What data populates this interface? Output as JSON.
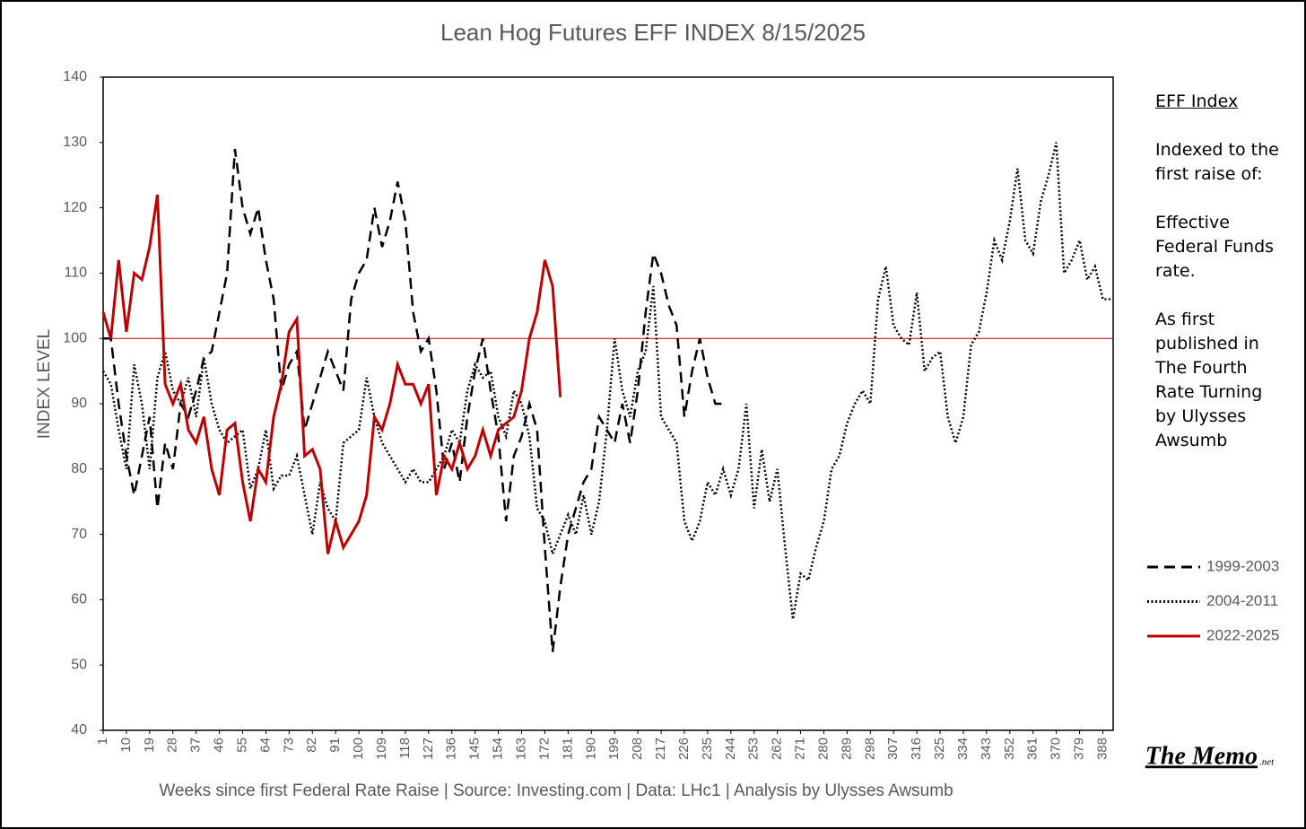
{
  "chart_data": {
    "type": "line",
    "title": "Lean Hog Futures EFF INDEX 8/15/2025",
    "x_label": "Weeks since first Federal Rate Raise | Source: Investing.com  | Data: LHc1 | Analysis by Ulysses Awsumb",
    "y_label": "INDEX LEVEL",
    "xlim": [
      1,
      392
    ],
    "ylim": [
      40,
      140
    ],
    "xticks": [
      1,
      10,
      19,
      28,
      37,
      46,
      55,
      64,
      73,
      82,
      91,
      100,
      109,
      118,
      127,
      136,
      145,
      154,
      163,
      172,
      181,
      190,
      199,
      208,
      217,
      226,
      235,
      244,
      253,
      262,
      271,
      280,
      289,
      298,
      307,
      316,
      325,
      334,
      343,
      352,
      361,
      370,
      379,
      388
    ],
    "yticks": [
      40,
      50,
      60,
      70,
      80,
      90,
      100,
      110,
      120,
      130,
      140
    ],
    "grid": false,
    "reference_line": {
      "value": 100,
      "color": "#c00000"
    },
    "legend_position": "right",
    "x": [
      1,
      4,
      7,
      10,
      13,
      16,
      19,
      22,
      25,
      28,
      31,
      34,
      37,
      40,
      43,
      46,
      49,
      52,
      55,
      58,
      61,
      64,
      67,
      70,
      73,
      76,
      79,
      82,
      85,
      88,
      91,
      94,
      97,
      100,
      103,
      106,
      109,
      112,
      115,
      118,
      121,
      124,
      127,
      130,
      133,
      136,
      139,
      142,
      145,
      148,
      151,
      154,
      157,
      160,
      163,
      166,
      169,
      172,
      175,
      178,
      181,
      184,
      187,
      190,
      193,
      196,
      199,
      202,
      205,
      208,
      211,
      214,
      217,
      220,
      223,
      226,
      229,
      232,
      235,
      238,
      241,
      244,
      247,
      250,
      253,
      256,
      259,
      262,
      265,
      268,
      271,
      274,
      277,
      280,
      283,
      286,
      289,
      292,
      295,
      298,
      301,
      304,
      307,
      310,
      313,
      316,
      319,
      322,
      325,
      328,
      331,
      334,
      337,
      340,
      343,
      346,
      349,
      352,
      355,
      358,
      361,
      364,
      367,
      370,
      373,
      376,
      379,
      382,
      385,
      388,
      391
    ],
    "series": [
      {
        "name": "1999-2003",
        "color": "#000000",
        "dash": "dashed",
        "values": [
          100,
          100,
          90,
          82,
          76,
          82,
          88,
          74,
          84,
          80,
          90,
          88,
          92,
          97,
          98,
          104,
          110,
          129,
          120,
          116,
          120,
          112,
          106,
          92,
          96,
          98,
          86,
          90,
          94,
          98,
          95,
          92,
          106,
          110,
          112,
          120,
          114,
          118,
          124,
          118,
          104,
          98,
          100,
          92,
          80,
          84,
          78,
          88,
          95,
          100,
          92,
          85,
          72,
          82,
          85,
          90,
          86,
          68,
          52,
          62,
          70,
          74,
          78,
          80,
          88,
          86,
          84,
          90,
          84,
          92,
          104,
          113,
          110,
          105,
          102,
          88,
          95,
          100,
          94,
          90,
          90,
          null,
          null,
          null,
          null,
          null,
          null,
          null,
          null,
          null,
          null,
          null,
          null,
          null,
          null,
          null,
          null,
          null,
          null,
          null,
          null,
          null,
          null,
          null,
          null,
          null,
          null,
          null,
          null,
          null,
          null,
          null,
          null,
          null,
          null,
          null,
          null,
          null,
          null,
          null,
          null,
          null,
          null,
          null,
          null,
          null,
          null,
          null,
          null,
          null,
          null
        ]
      },
      {
        "name": "2004-2011",
        "color": "#000000",
        "dash": "dotted",
        "values": [
          95,
          93,
          86,
          80,
          96,
          90,
          80,
          94,
          98,
          92,
          90,
          94,
          88,
          97,
          90,
          86,
          84,
          85,
          86,
          77,
          80,
          86,
          77,
          79,
          79,
          82,
          76,
          70,
          78,
          74,
          72,
          84,
          85,
          86,
          94,
          88,
          84,
          82,
          80,
          78,
          80,
          78,
          78,
          80,
          82,
          86,
          84,
          92,
          96,
          94,
          95,
          88,
          85,
          92,
          90,
          85,
          74,
          72,
          67,
          70,
          73,
          70,
          76,
          70,
          75,
          86,
          100,
          92,
          88,
          95,
          98,
          108,
          88,
          86,
          84,
          72,
          69,
          72,
          78,
          76,
          80,
          76,
          80,
          90,
          74,
          83,
          75,
          80,
          68,
          57,
          64,
          63,
          68,
          72,
          80,
          82,
          87,
          90,
          92,
          90,
          106,
          111,
          102,
          100,
          99,
          107,
          95,
          97,
          98,
          88,
          84,
          88,
          99,
          101,
          107,
          115,
          112,
          118,
          126,
          115,
          113,
          121,
          125,
          130,
          110,
          112,
          115,
          109,
          111,
          106,
          106
        ]
      },
      {
        "name": "2022-2025",
        "color": "#c00000",
        "dash": "solid",
        "values": [
          104,
          100,
          112,
          101,
          110,
          109,
          114,
          122,
          93,
          90,
          93,
          86,
          84,
          88,
          80,
          76,
          86,
          87,
          78,
          72,
          80,
          78,
          88,
          93,
          101,
          103,
          82,
          83,
          80,
          67,
          72,
          68,
          70,
          72,
          76,
          88,
          86,
          90,
          96,
          93,
          93,
          90,
          93,
          76,
          82,
          80,
          84,
          80,
          82,
          86,
          82,
          86,
          87,
          88,
          92,
          100,
          104,
          112,
          108,
          91,
          null,
          null,
          null,
          null,
          null,
          null,
          null,
          null,
          null,
          null,
          null,
          null,
          null,
          null,
          null,
          null,
          null,
          null,
          null,
          null,
          null,
          null,
          null,
          null,
          null,
          null,
          null,
          null,
          null,
          null,
          null,
          null,
          null,
          null,
          null,
          null,
          null,
          null,
          null,
          null,
          null,
          null,
          null,
          null,
          null,
          null,
          null,
          null,
          null,
          null,
          null,
          null,
          null,
          null,
          null,
          null,
          null,
          null,
          null,
          null,
          null,
          null,
          null,
          null,
          null,
          null,
          null,
          null,
          null,
          null,
          null
        ]
      }
    ],
    "side_note": {
      "heading": "EFF Index",
      "paragraphs": [
        "Indexed to the first raise of:",
        "Effective Federal Funds rate.",
        "As first published in The Fourth Rate Turning by Ulysses Awsumb"
      ]
    },
    "watermark": {
      "name": "The Memo",
      "suffix": ".net"
    }
  }
}
